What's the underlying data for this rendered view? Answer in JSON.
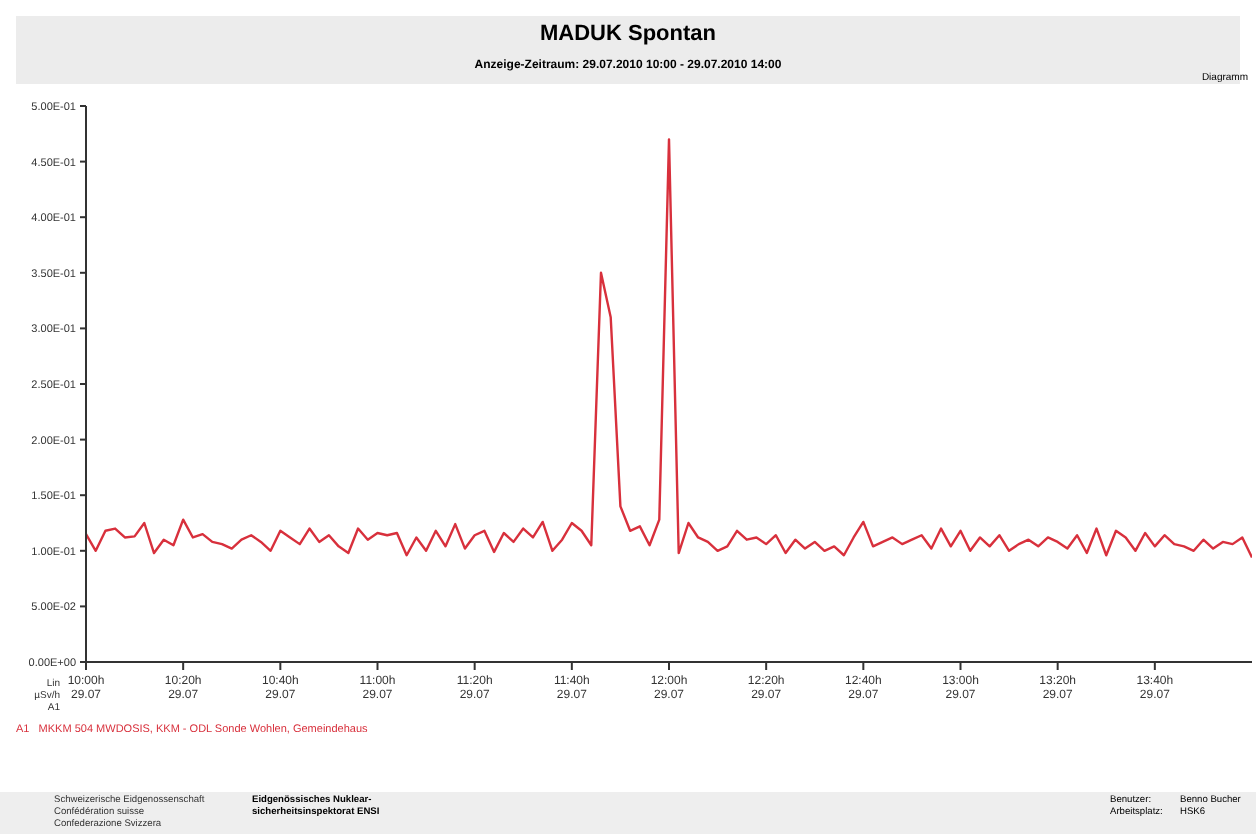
{
  "chart_data": {
    "type": "line",
    "title": "MADUK Spontan",
    "subtitle": "Anzeige-Zeitraum: 29.07.2010 10:00 - 29.07.2010 14:00",
    "ylabel": "Lin\nµSv/h\nA1",
    "x": [
      "2010-07-29T10:00",
      "2010-07-29T10:02",
      "2010-07-29T10:04",
      "2010-07-29T10:06",
      "2010-07-29T10:08",
      "2010-07-29T10:10",
      "2010-07-29T10:12",
      "2010-07-29T10:14",
      "2010-07-29T10:16",
      "2010-07-29T10:18",
      "2010-07-29T10:20",
      "2010-07-29T10:22",
      "2010-07-29T10:24",
      "2010-07-29T10:26",
      "2010-07-29T10:28",
      "2010-07-29T10:30",
      "2010-07-29T10:32",
      "2010-07-29T10:34",
      "2010-07-29T10:36",
      "2010-07-29T10:38",
      "2010-07-29T10:40",
      "2010-07-29T10:42",
      "2010-07-29T10:44",
      "2010-07-29T10:46",
      "2010-07-29T10:48",
      "2010-07-29T10:50",
      "2010-07-29T10:52",
      "2010-07-29T10:54",
      "2010-07-29T10:56",
      "2010-07-29T10:58",
      "2010-07-29T11:00",
      "2010-07-29T11:02",
      "2010-07-29T11:04",
      "2010-07-29T11:06",
      "2010-07-29T11:08",
      "2010-07-29T11:10",
      "2010-07-29T11:12",
      "2010-07-29T11:14",
      "2010-07-29T11:16",
      "2010-07-29T11:18",
      "2010-07-29T11:20",
      "2010-07-29T11:22",
      "2010-07-29T11:24",
      "2010-07-29T11:26",
      "2010-07-29T11:28",
      "2010-07-29T11:30",
      "2010-07-29T11:32",
      "2010-07-29T11:34",
      "2010-07-29T11:36",
      "2010-07-29T11:38",
      "2010-07-29T11:40",
      "2010-07-29T11:42",
      "2010-07-29T11:44",
      "2010-07-29T11:46",
      "2010-07-29T11:48",
      "2010-07-29T11:50",
      "2010-07-29T11:52",
      "2010-07-29T11:54",
      "2010-07-29T11:56",
      "2010-07-29T11:58",
      "2010-07-29T12:00",
      "2010-07-29T12:02",
      "2010-07-29T12:04",
      "2010-07-29T12:06",
      "2010-07-29T12:08",
      "2010-07-29T12:10",
      "2010-07-29T12:12",
      "2010-07-29T12:14",
      "2010-07-29T12:16",
      "2010-07-29T12:18",
      "2010-07-29T12:20",
      "2010-07-29T12:22",
      "2010-07-29T12:24",
      "2010-07-29T12:26",
      "2010-07-29T12:28",
      "2010-07-29T12:30",
      "2010-07-29T12:32",
      "2010-07-29T12:34",
      "2010-07-29T12:36",
      "2010-07-29T12:38",
      "2010-07-29T12:40",
      "2010-07-29T12:42",
      "2010-07-29T12:44",
      "2010-07-29T12:46",
      "2010-07-29T12:48",
      "2010-07-29T12:50",
      "2010-07-29T12:52",
      "2010-07-29T12:54",
      "2010-07-29T12:56",
      "2010-07-29T12:58",
      "2010-07-29T13:00",
      "2010-07-29T13:02",
      "2010-07-29T13:04",
      "2010-07-29T13:06",
      "2010-07-29T13:08",
      "2010-07-29T13:10",
      "2010-07-29T13:12",
      "2010-07-29T13:14",
      "2010-07-29T13:16",
      "2010-07-29T13:18",
      "2010-07-29T13:20",
      "2010-07-29T13:22",
      "2010-07-29T13:24",
      "2010-07-29T13:26",
      "2010-07-29T13:28",
      "2010-07-29T13:30",
      "2010-07-29T13:32",
      "2010-07-29T13:34",
      "2010-07-29T13:36",
      "2010-07-29T13:38",
      "2010-07-29T13:40",
      "2010-07-29T13:42",
      "2010-07-29T13:44",
      "2010-07-29T13:46",
      "2010-07-29T13:48",
      "2010-07-29T13:50",
      "2010-07-29T13:52",
      "2010-07-29T13:54",
      "2010-07-29T13:56",
      "2010-07-29T13:58",
      "2010-07-29T14:00"
    ],
    "series": [
      {
        "name": "A1   MKKM 504 MWDOSIS, KKM - ODL Sonde Wohlen, Gemeindehaus",
        "color": "#d8303c",
        "values": [
          0.115,
          0.1,
          0.118,
          0.12,
          0.112,
          0.113,
          0.125,
          0.098,
          0.11,
          0.105,
          0.128,
          0.112,
          0.115,
          0.108,
          0.106,
          0.102,
          0.11,
          0.114,
          0.108,
          0.1,
          0.118,
          0.112,
          0.106,
          0.12,
          0.108,
          0.114,
          0.104,
          0.098,
          0.12,
          0.11,
          0.116,
          0.114,
          0.116,
          0.096,
          0.112,
          0.1,
          0.118,
          0.104,
          0.124,
          0.102,
          0.114,
          0.118,
          0.099,
          0.116,
          0.108,
          0.12,
          0.112,
          0.126,
          0.1,
          0.11,
          0.125,
          0.118,
          0.105,
          0.35,
          0.31,
          0.14,
          0.118,
          0.122,
          0.105,
          0.128,
          0.47,
          0.098,
          0.125,
          0.112,
          0.108,
          0.1,
          0.104,
          0.118,
          0.11,
          0.112,
          0.106,
          0.114,
          0.098,
          0.11,
          0.102,
          0.108,
          0.1,
          0.104,
          0.096,
          0.112,
          0.126,
          0.104,
          0.108,
          0.112,
          0.106,
          0.11,
          0.114,
          0.102,
          0.12,
          0.104,
          0.118,
          0.1,
          0.112,
          0.104,
          0.114,
          0.1,
          0.106,
          0.11,
          0.104,
          0.112,
          0.108,
          0.102,
          0.114,
          0.098,
          0.12,
          0.096,
          0.118,
          0.112,
          0.1,
          0.116,
          0.104,
          0.114,
          0.106,
          0.104,
          0.1,
          0.11,
          0.102,
          0.108,
          0.106,
          0.112,
          0.094
        ]
      }
    ],
    "xlim": [
      "2010-07-29T10:00",
      "2010-07-29T14:00"
    ],
    "xticks": [
      {
        "value": "2010-07-29T10:00",
        "label": "10:00h\n29.07"
      },
      {
        "value": "2010-07-29T10:20",
        "label": "10:20h\n29.07"
      },
      {
        "value": "2010-07-29T10:40",
        "label": "10:40h\n29.07"
      },
      {
        "value": "2010-07-29T11:00",
        "label": "11:00h\n29.07"
      },
      {
        "value": "2010-07-29T11:20",
        "label": "11:20h\n29.07"
      },
      {
        "value": "2010-07-29T11:40",
        "label": "11:40h\n29.07"
      },
      {
        "value": "2010-07-29T12:00",
        "label": "12:00h\n29.07"
      },
      {
        "value": "2010-07-29T12:20",
        "label": "12:20h\n29.07"
      },
      {
        "value": "2010-07-29T12:40",
        "label": "12:40h\n29.07"
      },
      {
        "value": "2010-07-29T13:00",
        "label": "13:00h\n29.07"
      },
      {
        "value": "2010-07-29T13:20",
        "label": "13:20h\n29.07"
      },
      {
        "value": "2010-07-29T13:40",
        "label": "13:40h\n29.07"
      }
    ],
    "ylim": [
      0,
      0.5
    ],
    "yticks": [
      {
        "value": 0,
        "label": "0.00E+00"
      },
      {
        "value": 0.05,
        "label": "5.00E-02"
      },
      {
        "value": 0.1,
        "label": "1.00E-01"
      },
      {
        "value": 0.15,
        "label": "1.50E-01"
      },
      {
        "value": 0.2,
        "label": "2.00E-01"
      },
      {
        "value": 0.25,
        "label": "2.50E-01"
      },
      {
        "value": 0.3,
        "label": "3.00E-01"
      },
      {
        "value": 0.35,
        "label": "3.50E-01"
      },
      {
        "value": 0.4,
        "label": "4.00E-01"
      },
      {
        "value": 0.45,
        "label": "4.50E-01"
      },
      {
        "value": 0.5,
        "label": "5.00E-01"
      }
    ],
    "legend": "bottom left",
    "marker": "none",
    "line_style": "solid",
    "annotations": [
      "Diagramm",
      "Schweizerische Eidgenossenschaft\nConfédération suisse\nConfederazione Svizzera",
      "Eidgenössisches Nuklear-\nsicherheitsinspektorat ENSI",
      "Benutzer:\nArbeitsplatz:",
      "Benno Bucher\nHSK6"
    ]
  }
}
